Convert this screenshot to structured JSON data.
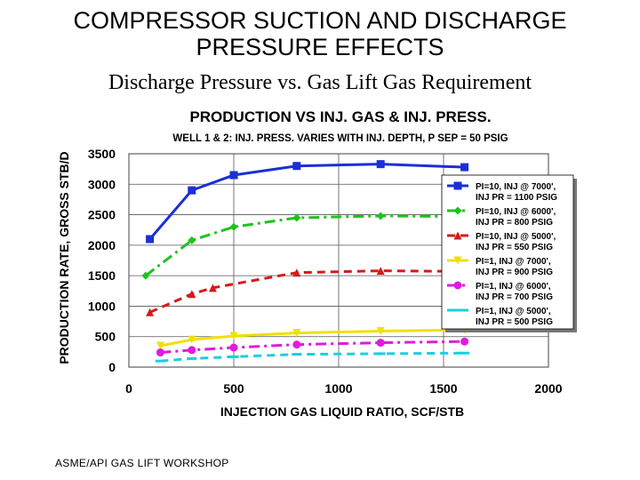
{
  "slide": {
    "title_line1": "COMPRESSOR SUCTION AND DISCHARGE",
    "title_line2": "PRESSURE EFFECTS",
    "subtitle": "Discharge Pressure vs. Gas Lift Gas Requirement",
    "footer": "ASME/API GAS LIFT WORKSHOP"
  },
  "chart_data": {
    "type": "line",
    "title": "PRODUCTION VS INJ. GAS & INJ. PRESS.",
    "subtitle": "WELL 1 & 2:  INJ. PRESS. VARIES WITH INJ. DEPTH, P SEP = 50 PSIG",
    "xlabel": "INJECTION GAS LIQUID RATIO, SCF/STB",
    "ylabel": "PRODUCTION RATE, GROSS STB/D",
    "xlim": [
      0,
      2000
    ],
    "ylim": [
      0,
      3500
    ],
    "xticks": [
      0,
      500,
      1000,
      1500,
      2000
    ],
    "yticks": [
      0,
      500,
      1000,
      1500,
      2000,
      2500,
      3000,
      3500
    ],
    "grid": true,
    "legend_position": "right",
    "series": [
      {
        "name_line1": "PI=10, INJ @ 7000',",
        "name_line2": "INJ PR = 1100 PSIG",
        "color": "#1a2fd6",
        "marker": "square",
        "dash": "solid",
        "x": [
          100,
          300,
          500,
          800,
          1200,
          1600
        ],
        "y": [
          2100,
          2900,
          3150,
          3300,
          3330,
          3280
        ]
      },
      {
        "name_line1": "PI=10, INJ @ 6000',",
        "name_line2": "INJ PR = 800 PSIG",
        "color": "#1fc21f",
        "marker": "diamond",
        "dash": "dashdot",
        "x": [
          80,
          300,
          500,
          800,
          1200,
          1600
        ],
        "y": [
          1500,
          2080,
          2300,
          2450,
          2480,
          2470
        ]
      },
      {
        "name_line1": "PI=10, INJ @ 5000',",
        "name_line2": "INJ PR = 550 PSIG",
        "color": "#d61a1a",
        "marker": "triangle",
        "dash": "dashed",
        "x": [
          100,
          300,
          400,
          800,
          1200,
          1600
        ],
        "y": [
          900,
          1200,
          1300,
          1550,
          1580,
          1570
        ]
      },
      {
        "name_line1": "PI=1, INJ @ 7000',",
        "name_line2": "INJ PR = 900 PSIG",
        "color": "#f0e000",
        "marker": "inverted-triangle",
        "dash": "solid",
        "x": [
          150,
          300,
          500,
          800,
          1200,
          1600
        ],
        "y": [
          350,
          450,
          510,
          560,
          590,
          610
        ]
      },
      {
        "name_line1": "PI=1, INJ @ 6000',",
        "name_line2": "INJ PR = 700 PSIG",
        "color": "#e01ae0",
        "marker": "circle",
        "dash": "dashdot",
        "x": [
          150,
          300,
          500,
          800,
          1200,
          1600
        ],
        "y": [
          240,
          280,
          320,
          370,
          400,
          420
        ]
      },
      {
        "name_line1": "PI=1, INJ @ 5000',",
        "name_line2": "INJ PR = 500 PSIG",
        "color": "#1ad0e0",
        "marker": "dash",
        "dash": "dashed",
        "x": [
          150,
          300,
          500,
          800,
          1200,
          1600
        ],
        "y": [
          100,
          140,
          170,
          210,
          220,
          230
        ]
      }
    ]
  }
}
